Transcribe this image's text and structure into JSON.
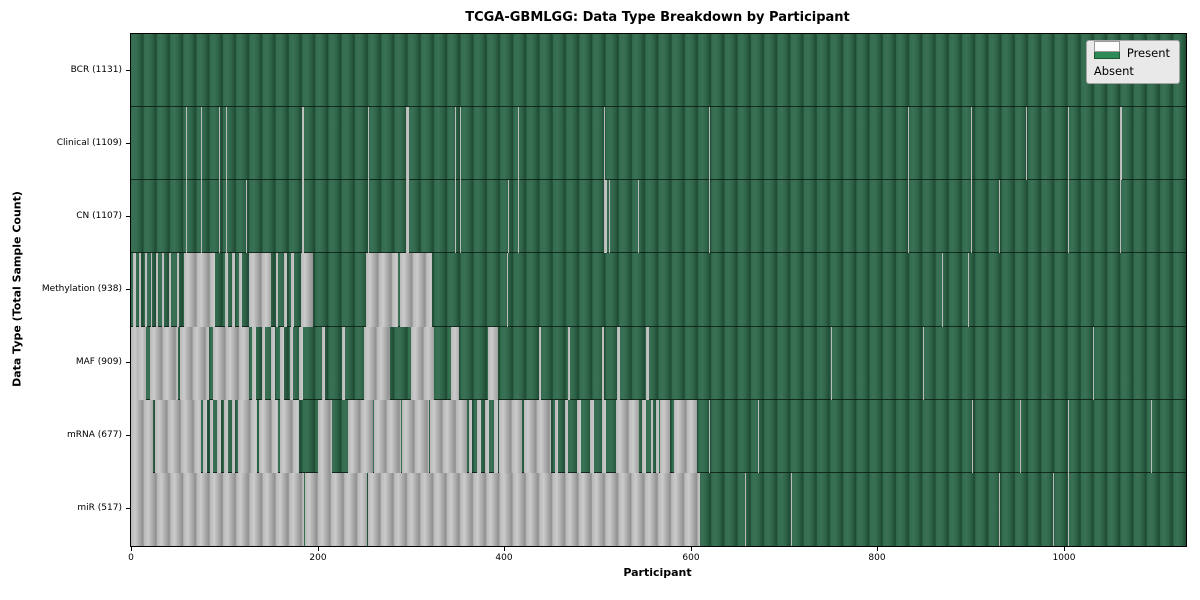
{
  "title": "TCGA-GBMLGG: Data Type Breakdown by Participant",
  "xlabel": "Participant",
  "ylabel": "Data Type (Total Sample Count)",
  "legend": {
    "present_label": "Present",
    "absent_label": "Absent"
  },
  "colors": {
    "present_fill": "#2E8B57",
    "present_render": "#336d4f",
    "absent_fill": "#ffffff",
    "absent_render": "#b9b9b9",
    "legend_bg": "#e9e9e9",
    "axis": "#000000"
  },
  "chart_data": {
    "type": "heatmap",
    "title": "TCGA-GBMLGG: Data Type Breakdown by Participant",
    "xlabel": "Participant",
    "ylabel": "Data Type (Total Sample Count)",
    "legend_entries": [
      "Present",
      "Absent"
    ],
    "legend_position": "upper right",
    "x_range": [
      0,
      1131
    ],
    "x_ticks": [
      0,
      200,
      400,
      600,
      800,
      1000
    ],
    "grid": false,
    "rows": [
      {
        "label": "BCR (1131)",
        "data_type": "BCR",
        "total_samples": 1131,
        "absent_segments": []
      },
      {
        "label": "Clinical (1109)",
        "data_type": "Clinical",
        "total_samples": 1109,
        "absent_segments": [
          [
            59,
            60
          ],
          [
            75,
            76
          ],
          [
            94,
            95
          ],
          [
            102,
            103
          ],
          [
            183,
            186
          ],
          [
            254,
            255
          ],
          [
            295,
            298
          ],
          [
            347,
            348
          ],
          [
            353,
            354
          ],
          [
            415,
            416
          ],
          [
            507,
            508
          ],
          [
            620,
            621
          ],
          [
            833,
            834
          ],
          [
            900,
            901
          ],
          [
            960,
            961
          ],
          [
            1005,
            1006
          ],
          [
            1060,
            1062
          ]
        ]
      },
      {
        "label": "CN (1107)",
        "data_type": "CN",
        "total_samples": 1107,
        "absent_segments": [
          [
            59,
            60
          ],
          [
            75,
            76
          ],
          [
            94,
            95
          ],
          [
            102,
            103
          ],
          [
            123,
            124
          ],
          [
            183,
            186
          ],
          [
            254,
            255
          ],
          [
            295,
            298
          ],
          [
            347,
            348
          ],
          [
            353,
            354
          ],
          [
            404,
            405
          ],
          [
            415,
            416
          ],
          [
            507,
            510
          ],
          [
            512,
            513
          ],
          [
            543,
            544
          ],
          [
            620,
            621
          ],
          [
            833,
            834
          ],
          [
            900,
            901
          ],
          [
            930,
            931
          ],
          [
            1005,
            1006
          ],
          [
            1060,
            1061
          ]
        ]
      },
      {
        "label": "Methylation (938)",
        "data_type": "Methylation",
        "total_samples": 938,
        "absent_segments": [
          [
            2,
            5
          ],
          [
            9,
            11
          ],
          [
            15,
            17
          ],
          [
            21,
            23
          ],
          [
            27,
            29
          ],
          [
            33,
            35
          ],
          [
            41,
            43
          ],
          [
            49,
            51
          ],
          [
            57,
            90
          ],
          [
            101,
            104
          ],
          [
            108,
            111
          ],
          [
            116,
            119
          ],
          [
            126,
            150
          ],
          [
            155,
            158
          ],
          [
            164,
            167
          ],
          [
            172,
            175
          ],
          [
            182,
            195
          ],
          [
            252,
            286
          ],
          [
            288,
            323
          ],
          [
            403,
            404
          ],
          [
            869,
            870
          ],
          [
            897,
            898
          ]
        ]
      },
      {
        "label": "MAF (909)",
        "data_type": "MAF",
        "total_samples": 909,
        "absent_segments": [
          [
            0,
            7
          ],
          [
            8,
            16
          ],
          [
            20,
            50
          ],
          [
            52,
            84
          ],
          [
            88,
            126
          ],
          [
            130,
            134
          ],
          [
            140,
            144
          ],
          [
            150,
            154
          ],
          [
            160,
            164
          ],
          [
            170,
            174
          ],
          [
            180,
            184
          ],
          [
            205,
            208
          ],
          [
            226,
            229
          ],
          [
            250,
            278
          ],
          [
            300,
            325
          ],
          [
            343,
            352
          ],
          [
            383,
            393
          ],
          [
            437,
            440
          ],
          [
            468,
            471
          ],
          [
            505,
            507
          ],
          [
            521,
            524
          ],
          [
            552,
            555
          ],
          [
            750,
            751
          ],
          [
            849,
            850
          ],
          [
            1031,
            1032
          ]
        ]
      },
      {
        "label": "mRNA (677)",
        "data_type": "mRNA",
        "total_samples": 677,
        "absent_segments": [
          [
            0,
            24
          ],
          [
            26,
            75
          ],
          [
            77,
            82
          ],
          [
            85,
            88
          ],
          [
            92,
            96
          ],
          [
            100,
            104
          ],
          [
            108,
            112
          ],
          [
            115,
            135
          ],
          [
            137,
            158
          ],
          [
            160,
            180
          ],
          [
            200,
            215
          ],
          [
            233,
            259
          ],
          [
            261,
            289
          ],
          [
            291,
            319
          ],
          [
            321,
            360
          ],
          [
            362,
            366
          ],
          [
            371,
            375
          ],
          [
            380,
            384
          ],
          [
            389,
            393
          ],
          [
            395,
            419
          ],
          [
            421,
            450
          ],
          [
            455,
            458
          ],
          [
            465,
            468
          ],
          [
            478,
            482
          ],
          [
            492,
            496
          ],
          [
            505,
            509
          ],
          [
            520,
            545
          ],
          [
            548,
            552
          ],
          [
            557,
            560
          ],
          [
            563,
            566
          ],
          [
            567,
            578
          ],
          [
            582,
            607
          ],
          [
            620,
            621
          ],
          [
            672,
            673
          ],
          [
            902,
            903
          ],
          [
            953,
            954
          ],
          [
            1004,
            1005
          ],
          [
            1094,
            1095
          ]
        ]
      },
      {
        "label": "miR (517)",
        "data_type": "miR",
        "total_samples": 517,
        "absent_segments": [
          [
            0,
            185
          ],
          [
            186,
            253
          ],
          [
            254,
            610
          ],
          [
            658,
            659
          ],
          [
            708,
            709
          ],
          [
            931,
            932
          ],
          [
            988,
            989
          ],
          [
            1005,
            1006
          ]
        ]
      }
    ]
  }
}
